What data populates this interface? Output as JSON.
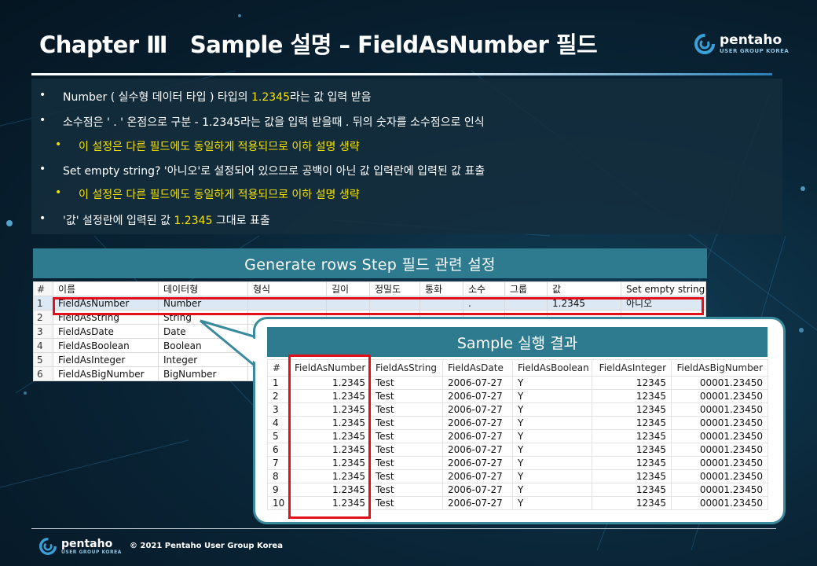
{
  "title": "Chapter Ⅲ   Sample 설명 – FieldAsNumber 필드",
  "logo": {
    "brand": "pentaho",
    "sub": "USER GROUP KOREA"
  },
  "bullets": [
    {
      "kind": "main",
      "pre": "Number ( 실수형 데이터 타입 ) 타입의 ",
      "hl": "1.2345",
      "post": "라는 값 입력 받음"
    },
    {
      "kind": "main",
      "pre": "소수점은 ' . ' 온점으로 구분 - 1.2345라는 값을 입력 받을때 . 뒤의 숫자를 소수점으로 인식",
      "hl": "",
      "post": ""
    },
    {
      "kind": "sub",
      "pre": "",
      "hl": "이 설정은 다른 필드에도 동일하게 적용되므로 이하 설명 생략",
      "post": ""
    },
    {
      "kind": "main",
      "pre": "Set empty string? '아니오'로 설정되어 있으므로 공백이 아닌 값 입력란에 입력된 값 표출",
      "hl": "",
      "post": ""
    },
    {
      "kind": "sub",
      "pre": "",
      "hl": "이 설정은 다른 필드에도 동일하게 적용되므로 이하 설명 생략",
      "post": ""
    },
    {
      "kind": "main",
      "pre": "'값' 설정란에 입력된 값 ",
      "hl": "1.2345",
      "post": " 그대로 표출"
    }
  ],
  "grid": {
    "title": "Generate rows Step 필드 관련 설정",
    "columns": [
      "#",
      "이름",
      "데이터형",
      "형식",
      "길이",
      "정밀도",
      "통화",
      "소수",
      "그룹",
      "값",
      "Set empty string?"
    ],
    "rows": [
      [
        "1",
        "FieldAsNumber",
        "Number",
        "",
        "",
        "",
        "",
        ".",
        "",
        "1.2345",
        "아니오"
      ],
      [
        "2",
        "FieldAsString",
        "String",
        "",
        "",
        "",
        "",
        "",
        "",
        "",
        ""
      ],
      [
        "3",
        "FieldAsDate",
        "Date",
        "",
        "",
        "",
        "",
        "",
        "",
        "",
        ""
      ],
      [
        "4",
        "FieldAsBoolean",
        "Boolean",
        "",
        "",
        "",
        "",
        "",
        "",
        "",
        ""
      ],
      [
        "5",
        "FieldAsInteger",
        "Integer",
        "",
        "",
        "",
        "",
        "",
        "",
        "",
        ""
      ],
      [
        "6",
        "FieldAsBigNumber",
        "BigNumber",
        "",
        "",
        "",
        "",
        "",
        "",
        "",
        ""
      ]
    ]
  },
  "result": {
    "title": "Sample 실행 결과",
    "columns": [
      "#",
      "FieldAsNumber",
      "FieldAsString",
      "FieldAsDate",
      "FieldAsBoolean",
      "FieldAsInteger",
      "FieldAsBigNumber"
    ],
    "rows": [
      [
        "1",
        "1.2345",
        "Test",
        "2006-07-27",
        "Y",
        "12345",
        "00001.23450"
      ],
      [
        "2",
        "1.2345",
        "Test",
        "2006-07-27",
        "Y",
        "12345",
        "00001.23450"
      ],
      [
        "3",
        "1.2345",
        "Test",
        "2006-07-27",
        "Y",
        "12345",
        "00001.23450"
      ],
      [
        "4",
        "1.2345",
        "Test",
        "2006-07-27",
        "Y",
        "12345",
        "00001.23450"
      ],
      [
        "5",
        "1.2345",
        "Test",
        "2006-07-27",
        "Y",
        "12345",
        "00001.23450"
      ],
      [
        "6",
        "1.2345",
        "Test",
        "2006-07-27",
        "Y",
        "12345",
        "00001.23450"
      ],
      [
        "7",
        "1.2345",
        "Test",
        "2006-07-27",
        "Y",
        "12345",
        "00001.23450"
      ],
      [
        "8",
        "1.2345",
        "Test",
        "2006-07-27",
        "Y",
        "12345",
        "00001.23450"
      ],
      [
        "9",
        "1.2345",
        "Test",
        "2006-07-27",
        "Y",
        "12345",
        "00001.23450"
      ],
      [
        "10",
        "1.2345",
        "Test",
        "2006-07-27",
        "Y",
        "12345",
        "00001.23450"
      ]
    ]
  },
  "footer": {
    "copyright": "© 2021 Pentaho User Group Korea"
  },
  "colors": {
    "highlight": "#f3e200",
    "header": "#2e7a8f",
    "annotation": "#e3101a",
    "background": "#0a2638"
  }
}
